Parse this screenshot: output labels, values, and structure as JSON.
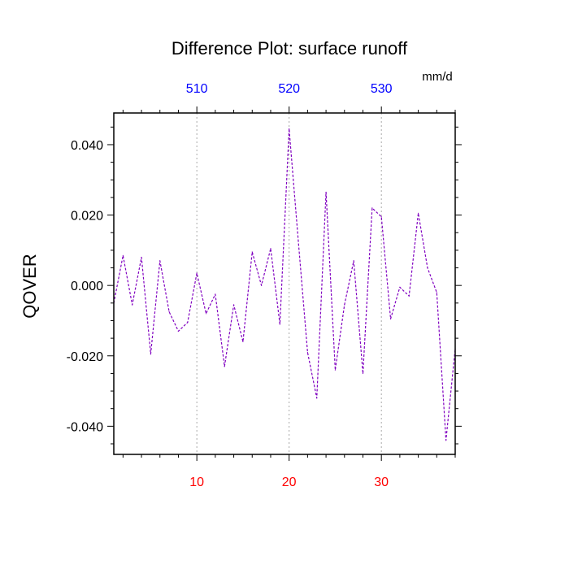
{
  "chart_data": {
    "type": "line",
    "title": "Difference Plot: surface runoff",
    "units": "mm/d",
    "ylabel": "QOVER",
    "xlabel": "",
    "xlim": [
      1,
      38
    ],
    "ylim": [
      -0.048,
      0.049
    ],
    "grid": "vertical dotted lines at major bottom ticks",
    "x": [
      1,
      2,
      3,
      4,
      5,
      6,
      7,
      8,
      9,
      10,
      11,
      12,
      13,
      14,
      15,
      16,
      17,
      18,
      19,
      20,
      21,
      22,
      23,
      24,
      25,
      26,
      27,
      28,
      29,
      30,
      31,
      32,
      33,
      34,
      35,
      36,
      37,
      38
    ],
    "series": [
      {
        "color": "#8000c0",
        "values": [
          -0.005,
          0.0085,
          -0.0055,
          0.008,
          -0.0195,
          0.007,
          -0.0075,
          -0.013,
          -0.0105,
          0.0035,
          -0.008,
          -0.0025,
          -0.023,
          -0.0055,
          -0.016,
          0.0095,
          0.0,
          0.0105,
          -0.011,
          0.0445,
          0.0125,
          -0.019,
          -0.032,
          0.0265,
          -0.024,
          -0.0055,
          0.007,
          -0.025,
          0.022,
          0.0195,
          -0.0095,
          -0.0005,
          -0.003,
          0.0205,
          0.005,
          -0.002,
          -0.044,
          -0.018
        ]
      }
    ],
    "y_ticks": [
      {
        "value": 0.04,
        "label": "0.040"
      },
      {
        "value": 0.02,
        "label": "0.020"
      },
      {
        "value": 0.0,
        "label": "0.000"
      },
      {
        "value": -0.02,
        "label": "-0.020"
      },
      {
        "value": -0.04,
        "label": "-0.040"
      }
    ],
    "x_bottom_ticks": [
      {
        "value": 10,
        "label": "10"
      },
      {
        "value": 20,
        "label": "20"
      },
      {
        "value": 30,
        "label": "30"
      }
    ],
    "x_top_ticks": [
      {
        "value": 10,
        "label": "510"
      },
      {
        "value": 20,
        "label": "520"
      },
      {
        "value": 30,
        "label": "530"
      }
    ],
    "colors": {
      "bottom_tick_labels": "#ff0000",
      "top_tick_labels": "#0000ff",
      "line": "#8000c0",
      "grid": "#aaaaaa",
      "axes": "#000000"
    }
  }
}
